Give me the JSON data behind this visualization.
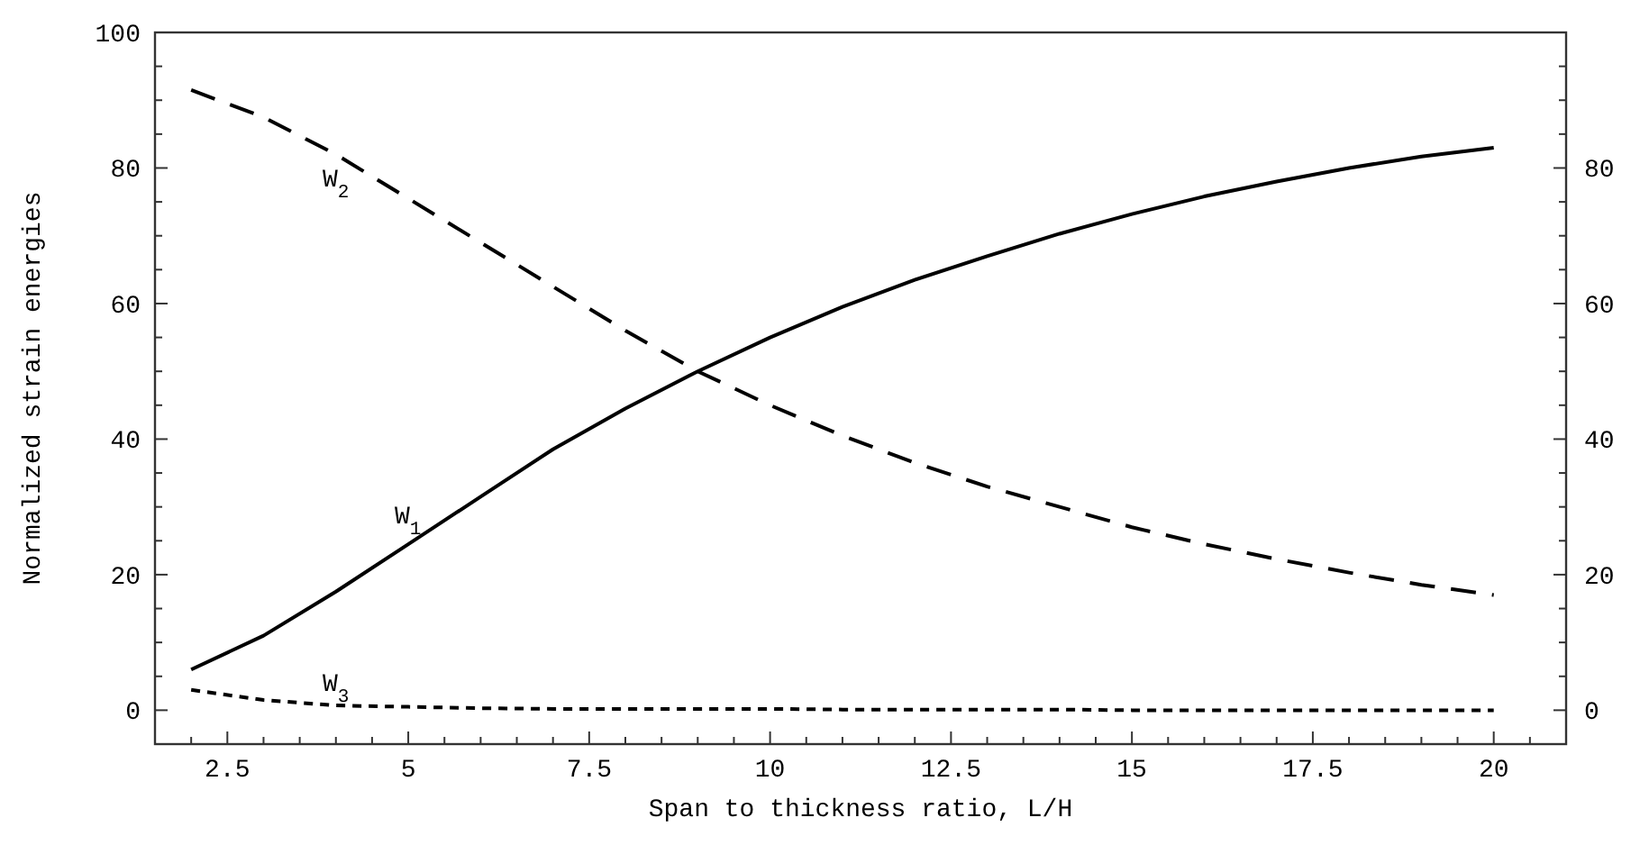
{
  "chart_data": {
    "type": "line",
    "xlabel": "Span to thickness ratio, L/H",
    "ylabel": "Normalized strain energies",
    "x": [
      2,
      3,
      4,
      5,
      6,
      7,
      8,
      9,
      10,
      11,
      12,
      13,
      14,
      15,
      16,
      17,
      18,
      19,
      20
    ],
    "series": [
      {
        "name": "W$_{1}$",
        "color": "#000000",
        "line_style": "solid",
        "values": [
          6,
          11,
          17.5,
          24.5,
          31.5,
          38.5,
          44.5,
          50,
          55,
          59.5,
          63.5,
          67,
          70.3,
          73.2,
          75.8,
          78,
          80,
          81.7,
          83
        ]
      },
      {
        "name": "W$_{2}$",
        "color": "#000000",
        "line_style": "dashed",
        "values": [
          91.5,
          87.5,
          82,
          75.5,
          69,
          62.5,
          56,
          50,
          45,
          40.5,
          36.5,
          33,
          30,
          27,
          24.5,
          22.3,
          20.3,
          18.5,
          17
        ]
      },
      {
        "name": "W$_{3}$",
        "color": "#000000",
        "line_style": "dotted",
        "values": [
          3,
          1.5,
          0.7,
          0.5,
          0.3,
          0.2,
          0.2,
          0.2,
          0.2,
          0.1,
          0.1,
          0.1,
          0.1,
          0,
          0,
          0,
          0,
          0,
          0
        ]
      }
    ],
    "xlim": [
      1.5,
      21
    ],
    "ylim": [
      -5,
      100
    ],
    "y2lim": [
      -5,
      100
    ],
    "xticks": [
      {
        "value": 2,
        "label": null
      },
      2.5,
      {
        "value": 3,
        "label": null
      },
      {
        "value": 3.5,
        "label": null
      },
      {
        "value": 4,
        "label": null
      },
      {
        "value": 4.5,
        "label": null
      },
      5,
      {
        "value": 5.5,
        "label": null
      },
      {
        "value": 6,
        "label": null
      },
      {
        "value": 6.5,
        "label": null
      },
      {
        "value": 7,
        "label": null
      },
      7.5,
      {
        "value": 8,
        "label": null
      },
      {
        "value": 8.5,
        "label": null
      },
      {
        "value": 9,
        "label": null
      },
      {
        "value": 9.5,
        "label": null
      },
      10,
      {
        "value": 10.5,
        "label": null
      },
      {
        "value": 11,
        "label": null
      },
      {
        "value": 11.5,
        "label": null
      },
      {
        "value": 12,
        "label": null
      },
      12.5,
      {
        "value": 13,
        "label": null
      },
      {
        "value": 13.5,
        "label": null
      },
      {
        "value": 14,
        "label": null
      },
      {
        "value": 14.5,
        "label": null
      },
      15,
      {
        "value": 15.5,
        "label": null
      },
      {
        "value": 16,
        "label": null
      },
      {
        "value": 16.5,
        "label": null
      },
      {
        "value": 17,
        "label": null
      },
      17.5,
      {
        "value": 18,
        "label": null
      },
      {
        "value": 18.5,
        "label": null
      },
      {
        "value": 19,
        "label": null
      },
      {
        "value": 19.5,
        "label": null
      },
      20,
      {
        "value": 20.5,
        "label": null
      }
    ],
    "yticks": [
      0,
      {
        "value": 5,
        "label": null
      },
      20,
      {
        "value": 10,
        "label": null
      },
      {
        "value": 15,
        "label": null
      },
      {
        "value": 25,
        "label": null
      },
      {
        "value": 30,
        "label": null
      },
      {
        "value": 35,
        "label": null
      },
      40,
      {
        "value": 45,
        "label": null
      },
      {
        "value": 50,
        "label": null
      },
      {
        "value": 55,
        "label": null
      },
      60,
      {
        "value": 65,
        "label": null
      },
      {
        "value": 70,
        "label": null
      },
      {
        "value": 75,
        "label": null
      },
      80,
      {
        "value": 85,
        "label": null
      },
      {
        "value": 90,
        "label": null
      },
      {
        "value": 95,
        "label": null
      },
      100
    ],
    "y2ticks": [
      0,
      {
        "value": 5,
        "label": null
      },
      20,
      {
        "value": 10,
        "label": null
      },
      {
        "value": 15,
        "label": null
      },
      {
        "value": 25,
        "label": null
      },
      {
        "value": 30,
        "label": null
      },
      {
        "value": 35,
        "label": null
      },
      40,
      {
        "value": 45,
        "label": null
      },
      {
        "value": 50,
        "label": null
      },
      {
        "value": 55,
        "label": null
      },
      60,
      {
        "value": 65,
        "label": null
      },
      {
        "value": 70,
        "label": null
      },
      {
        "value": 75,
        "label": null
      },
      80,
      {
        "value": 85,
        "label": null
      },
      {
        "value": 90,
        "label": null
      },
      {
        "value": 95,
        "label": null
      }
    ],
    "grid": false,
    "marker": "none"
  }
}
